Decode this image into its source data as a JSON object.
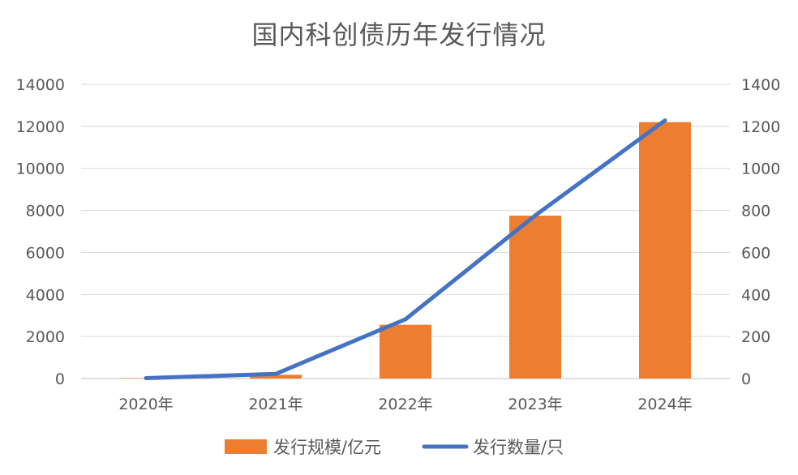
{
  "chart_data": {
    "type": "bar",
    "title": "国内科创债历年发行情况",
    "categories": [
      "2020年",
      "2021年",
      "2022年",
      "2023年",
      "2024年"
    ],
    "series": [
      {
        "name": "发行规模/亿元",
        "type": "bar",
        "axis": "left",
        "color": "#ED7D31",
        "values": [
          20,
          180,
          2560,
          7750,
          12200
        ]
      },
      {
        "name": "发行数量/只",
        "type": "line",
        "axis": "right",
        "color": "#4472C4",
        "values": [
          2,
          22,
          282,
          776,
          1228
        ]
      }
    ],
    "y_left": {
      "min": 0,
      "max": 14000,
      "ticks": [
        "0",
        "2000",
        "4000",
        "6000",
        "8000",
        "10000",
        "12000",
        "14000"
      ]
    },
    "y_right": {
      "min": 0,
      "max": 1400,
      "ticks": [
        "0",
        "200",
        "400",
        "600",
        "800",
        "1000",
        "1200",
        "1400"
      ]
    },
    "grid": true,
    "legend_position": "bottom"
  }
}
